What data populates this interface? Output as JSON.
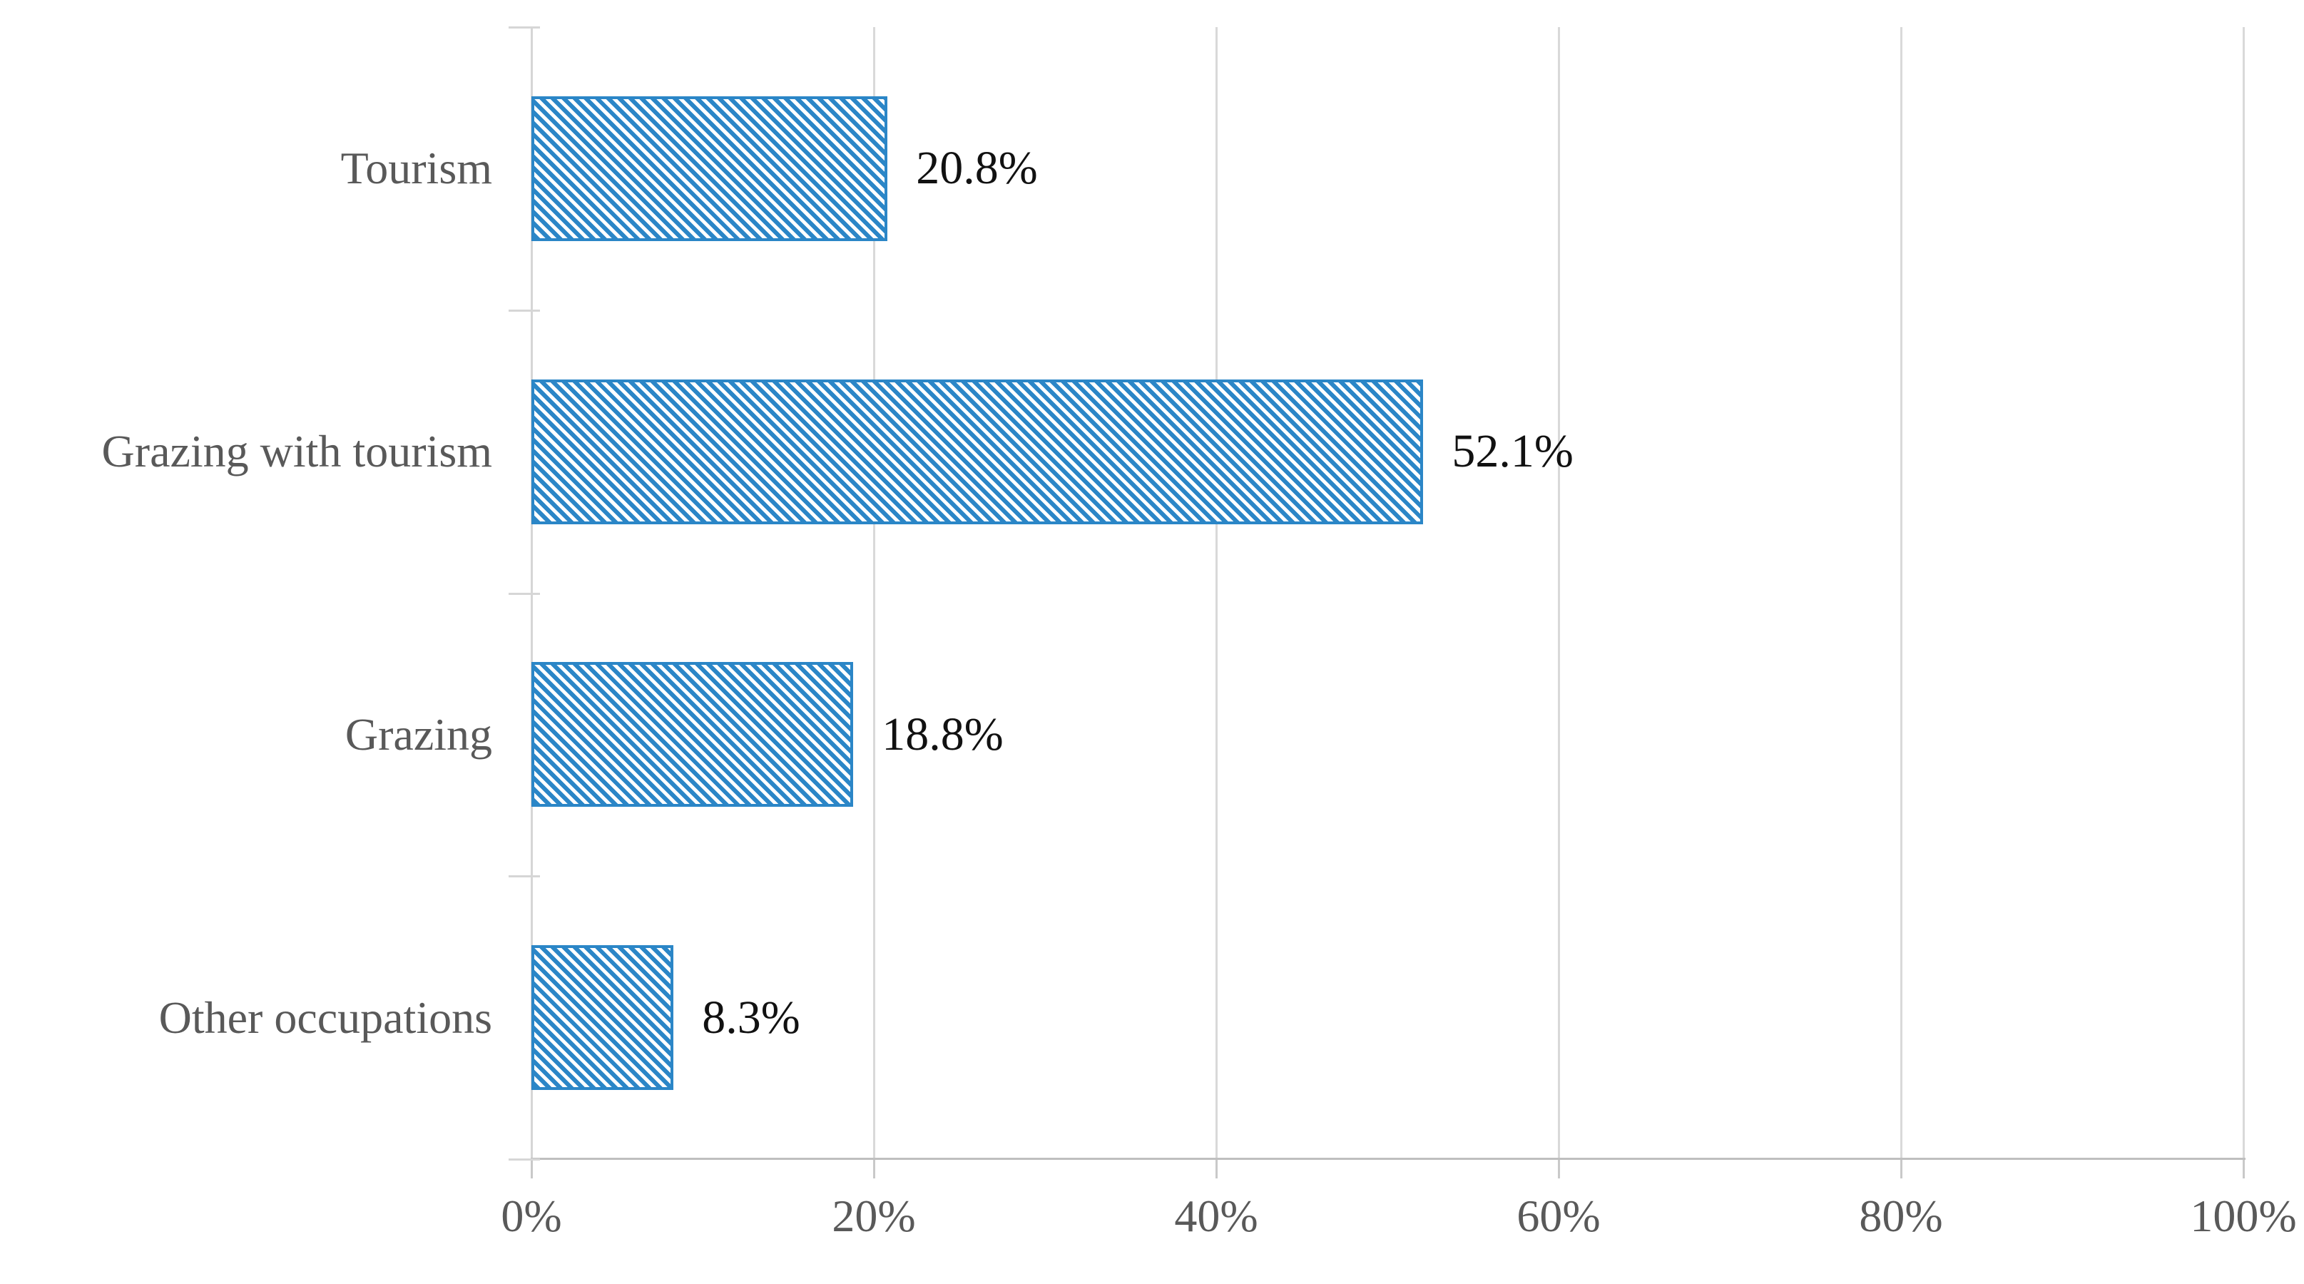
{
  "chart_data": {
    "type": "bar",
    "orientation": "horizontal",
    "title": "",
    "categories": [
      "Tourism",
      "Grazing with tourism",
      "Grazing",
      "Other occupations"
    ],
    "values": [
      20.8,
      52.1,
      18.8,
      8.3
    ],
    "data_labels": [
      "20.8%",
      "52.1%",
      "18.8%",
      "8.3%"
    ],
    "xlabel": "",
    "ylabel": "",
    "xlim": [
      0,
      100
    ],
    "x_ticks": [
      0,
      20,
      40,
      60,
      80,
      100
    ],
    "x_tick_labels": [
      "0%",
      "20%",
      "40%",
      "60%",
      "80%",
      "100%"
    ],
    "grid": true,
    "legend": false,
    "bar_style": {
      "fill_pattern": "diagonal-hatch-45",
      "hatch_color": "#2B86C7",
      "pattern_background": "#FFFFFF",
      "border_color": "#2B86C7"
    },
    "colors": {
      "gridline": "#D9D9D9",
      "value_axis_line": "#BFBFBF",
      "category_axis_line": "#D6D6D6",
      "tick_label": "#595959",
      "category_label": "#595959",
      "data_label": "#111111"
    }
  }
}
